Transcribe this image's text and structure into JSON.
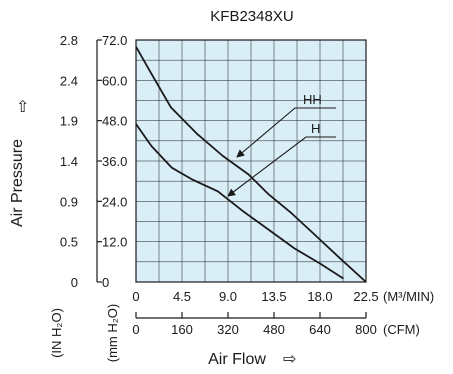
{
  "chart_data": {
    "type": "line",
    "title": "KFB2348XU",
    "xlabel": "Air Flow",
    "ylabel": "Air Pressure",
    "xlim": [
      0,
      22.5
    ],
    "ylim": [
      0,
      72.0
    ],
    "x_unit_primary": "(M³/MIN)",
    "x_unit_secondary": "(CFM)",
    "y_unit_primary": "(mm H₂O)",
    "y_unit_secondary": "(IN H₂O)",
    "x_ticks_m3min": [
      "0",
      "4.5",
      "9.0",
      "13.5",
      "18.0",
      "22.5"
    ],
    "x_ticks_cfm": [
      "0",
      "160",
      "320",
      "480",
      "640",
      "800"
    ],
    "y_ticks_mmh2o": [
      "0",
      "12.0",
      "24.0",
      "36.0",
      "48.0",
      "60.0",
      "72.0"
    ],
    "y_ticks_inh2o": [
      "0",
      "0.5",
      "0.9",
      "1.4",
      "1.9",
      "2.4",
      "2.8"
    ],
    "grid": true,
    "series": [
      {
        "name": "HH",
        "x": [
          0,
          1.5,
          3.4,
          6.0,
          8.5,
          11.0,
          13.0,
          15.2,
          17.5,
          19.8,
          22.5
        ],
        "y": [
          70.0,
          62.0,
          52.0,
          44.0,
          37.5,
          32.0,
          26.0,
          20.5,
          14.0,
          7.5,
          0
        ]
      },
      {
        "name": "H",
        "x": [
          0,
          1.5,
          3.5,
          5.5,
          8.0,
          10.5,
          13.0,
          15.5,
          18.0,
          20.3
        ],
        "y": [
          47.0,
          40.5,
          34.0,
          30.5,
          27.0,
          21.0,
          15.5,
          10.0,
          5.5,
          1.0
        ]
      }
    ],
    "annotations": [
      "HH",
      "H"
    ],
    "arrow_symbol": "⇨",
    "arrow_symbol_up": "⇧"
  }
}
